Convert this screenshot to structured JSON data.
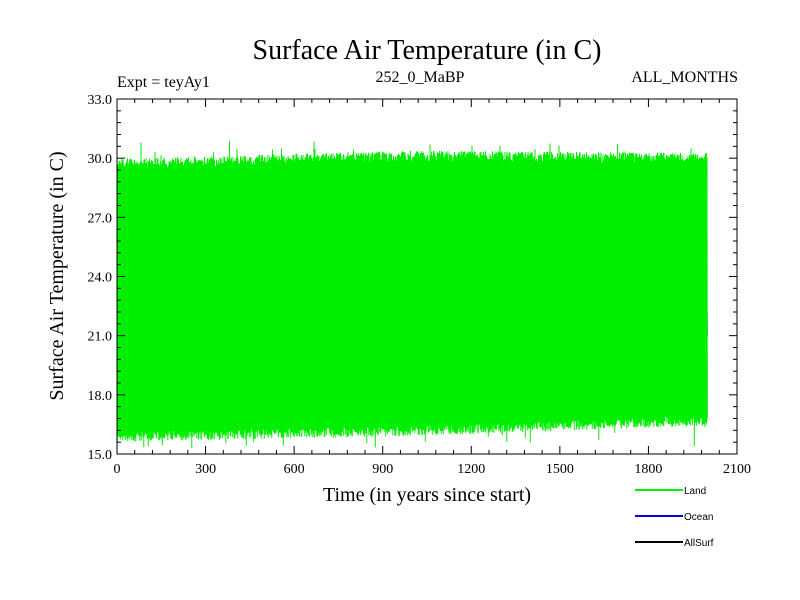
{
  "chart_data": {
    "type": "line",
    "title": "Surface Air Temperature (in C)",
    "subtitle_left": "Expt = teyAy1",
    "subtitle_center": "252_0_MaBP",
    "subtitle_right": "ALL_MONTHS",
    "xlabel": "Time (in years since start)",
    "ylabel": "Surface Air Temperature (in C)",
    "xlim": [
      0,
      2100
    ],
    "ylim": [
      15.0,
      33.0
    ],
    "x_ticks": [
      0,
      300,
      600,
      900,
      1200,
      1500,
      1800,
      2100
    ],
    "x_tick_labels": [
      "0",
      "300",
      "600",
      "900",
      "1200",
      "1500",
      "1800",
      "2100"
    ],
    "y_ticks": [
      15.0,
      18.0,
      21.0,
      24.0,
      27.0,
      30.0,
      33.0
    ],
    "y_tick_labels": [
      "15.0",
      "18.0",
      "21.0",
      "24.0",
      "27.0",
      "30.0",
      "33.0"
    ],
    "grid": false,
    "legend_position": "bottom-right",
    "series": [
      {
        "name": "Land",
        "color": "#00ee00",
        "x_range": [
          0,
          2000
        ],
        "band_low": [
          [
            0,
            16.0
          ],
          [
            1000,
            16.3
          ],
          [
            2000,
            16.8
          ]
        ],
        "band_high": [
          [
            0,
            29.6
          ],
          [
            1000,
            30.0
          ],
          [
            2000,
            29.9
          ]
        ],
        "extreme_low": 15.3,
        "extreme_high": 30.9
      },
      {
        "name": "Ocean",
        "color": "#0000ee",
        "x_range": [
          0,
          2000
        ],
        "band_low": [
          [
            0,
            20.8
          ],
          [
            1000,
            20.9
          ],
          [
            2000,
            21.0
          ]
        ],
        "band_high": [
          [
            0,
            22.0
          ],
          [
            1000,
            22.2
          ],
          [
            2000,
            22.4
          ]
        ],
        "extreme_low": 20.6,
        "extreme_high": 22.6
      },
      {
        "name": "AllSurf",
        "color": "#000000",
        "x_range": [
          0,
          2000
        ],
        "band_low": [],
        "band_high": []
      }
    ]
  }
}
